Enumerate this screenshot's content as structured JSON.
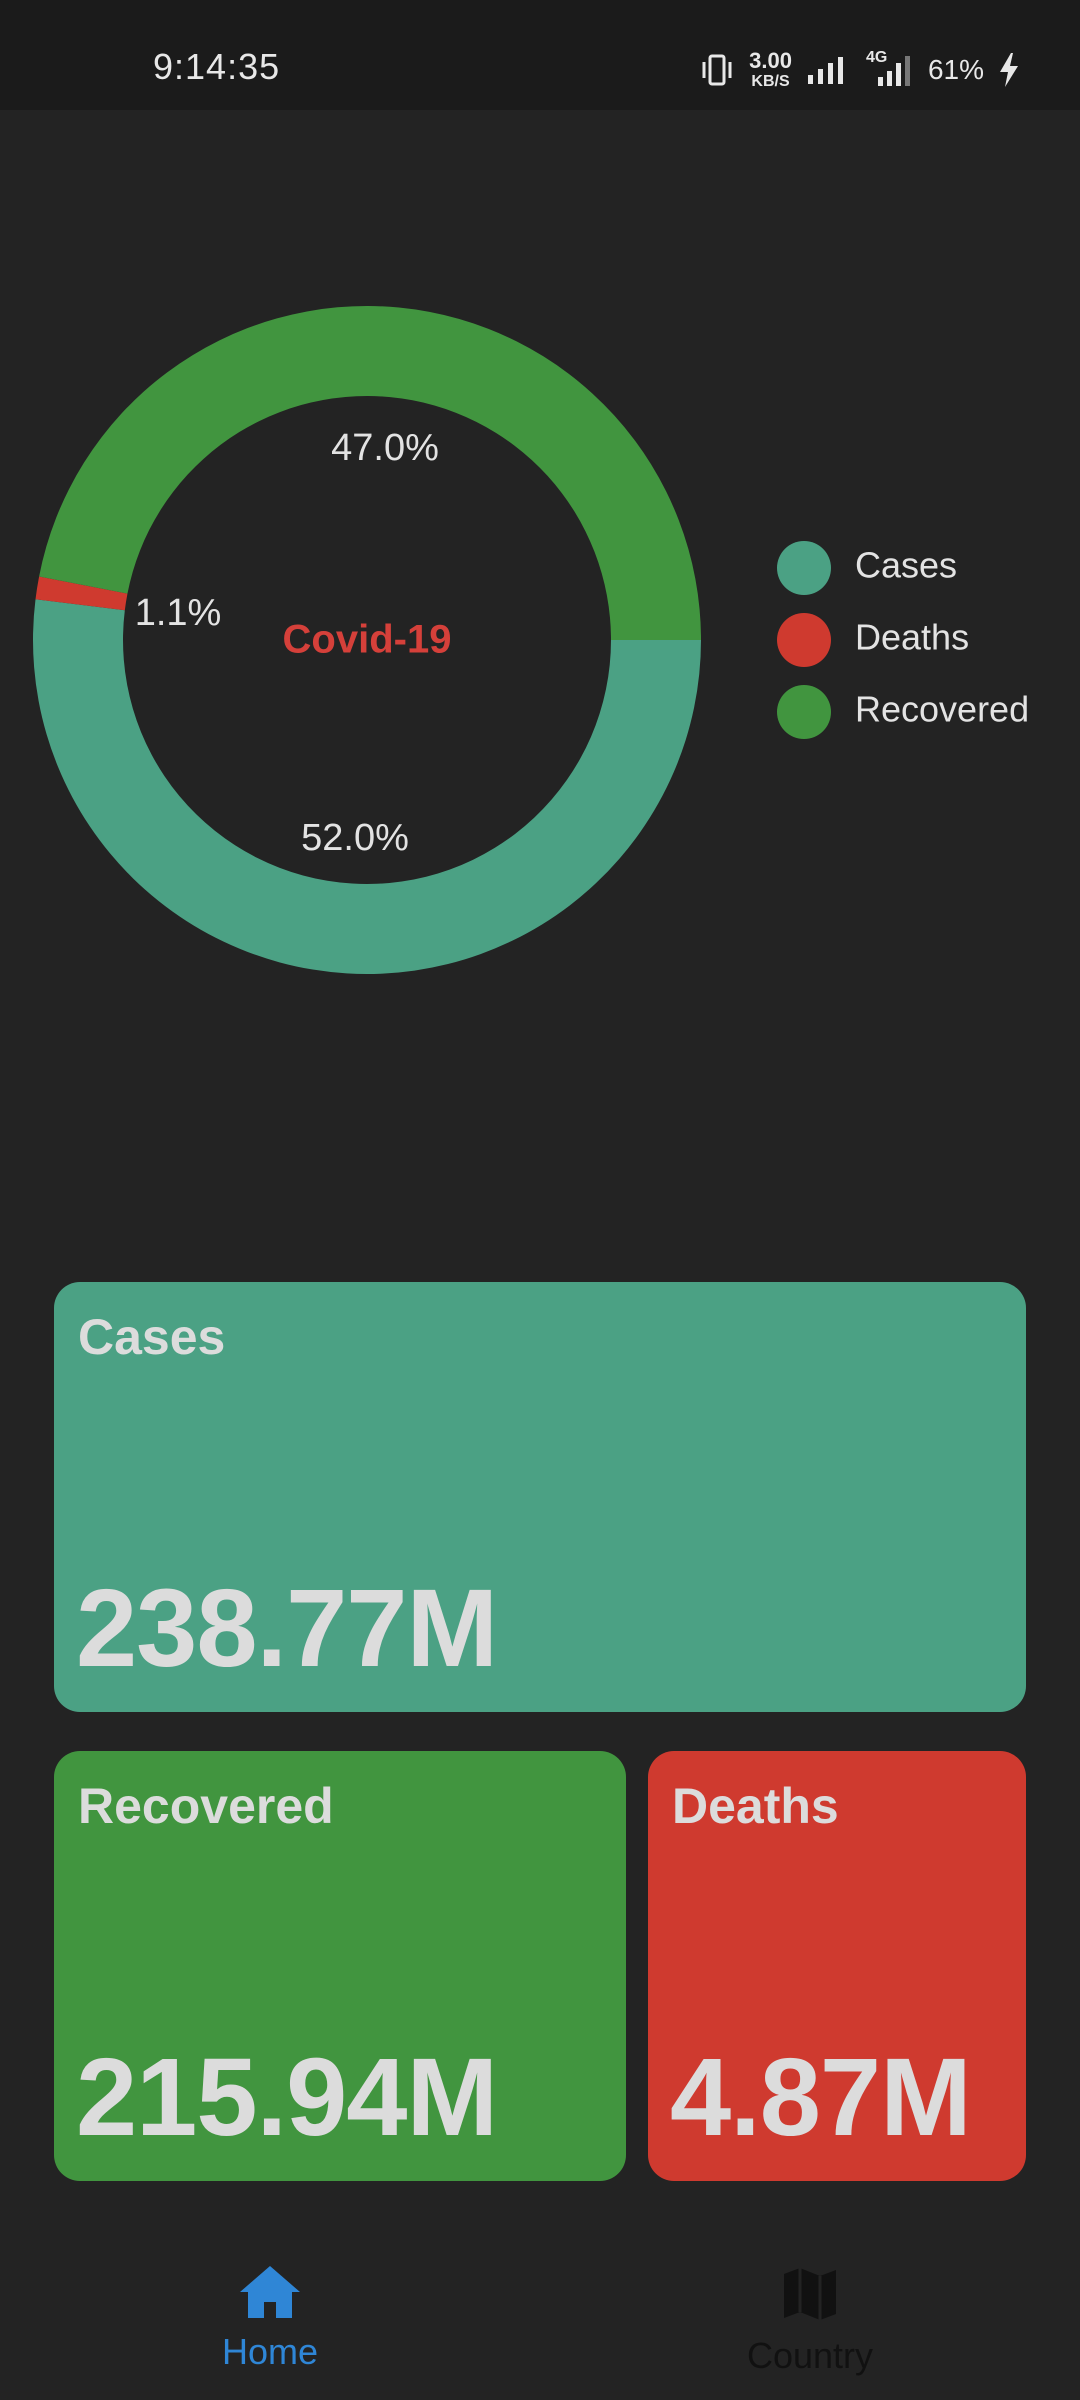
{
  "status_bar": {
    "time": "9:14:35",
    "net_speed_value": "3.00",
    "net_speed_unit": "KB/S",
    "network_type": "4G",
    "battery": "61%",
    "icons": [
      "vibrate-icon",
      "signal-icon",
      "signal-4g-icon",
      "charging-icon"
    ]
  },
  "chart": {
    "center_label": "Covid-19",
    "colors": {
      "cases": "#4ba184",
      "deaths": "#cf3a2f",
      "recovered": "#41953f",
      "center_label": "#d5403a"
    },
    "legend": [
      {
        "label": "Cases",
        "color": "#4ba184"
      },
      {
        "label": "Deaths",
        "color": "#cf3a2f"
      },
      {
        "label": "Recovered",
        "color": "#41953f"
      }
    ]
  },
  "chart_data": {
    "type": "pie",
    "title": "Covid-19",
    "categories": [
      "Cases",
      "Deaths",
      "Recovered"
    ],
    "values": [
      52.0,
      1.1,
      47.0
    ],
    "labels": [
      "52.0%",
      "1.1%",
      "47.0%"
    ],
    "legend_position": "right"
  },
  "cards": {
    "cases": {
      "title": "Cases",
      "value": "238.77M",
      "color": "#4ba184"
    },
    "recovered": {
      "title": "Recovered",
      "value": "215.94M",
      "color": "#41953f"
    },
    "deaths": {
      "title": "Deaths",
      "value": "4.87M",
      "color": "#cf3a2f"
    }
  },
  "bottom_nav": {
    "items": [
      {
        "label": "Home",
        "icon": "home-icon",
        "active": true,
        "color": "#2f86d6"
      },
      {
        "label": "Country",
        "icon": "map-icon",
        "active": false,
        "color": "#111111"
      }
    ]
  }
}
